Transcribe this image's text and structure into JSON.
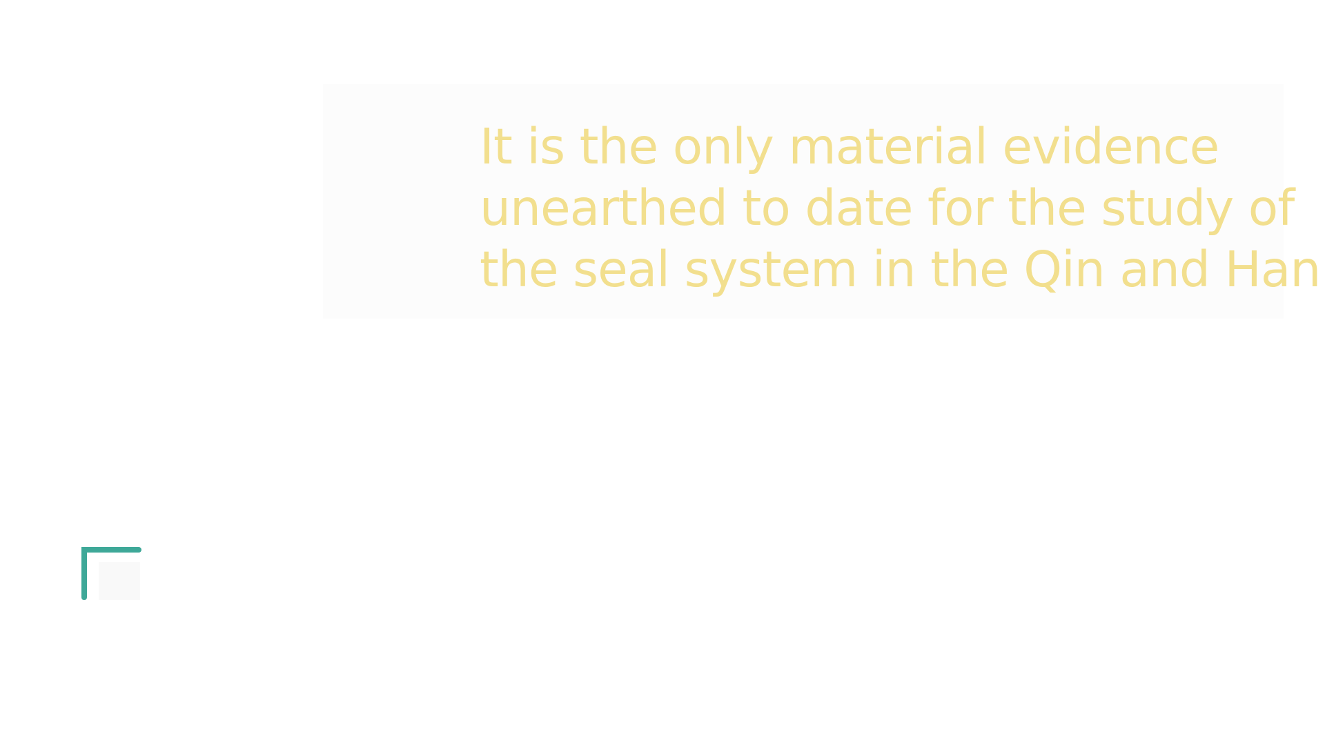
{
  "caption": {
    "lines": [
      "It is the only material evidence",
      "unearthed to date for the study of",
      "the seal system in the Qin and Han."
    ]
  },
  "colors": {
    "background": "#ffffff",
    "panel": "#fcfcfc",
    "caption_text": "#f2df8e",
    "bracket": "#3ea898"
  },
  "icons": {
    "corner": "corner-bracket-icon"
  }
}
